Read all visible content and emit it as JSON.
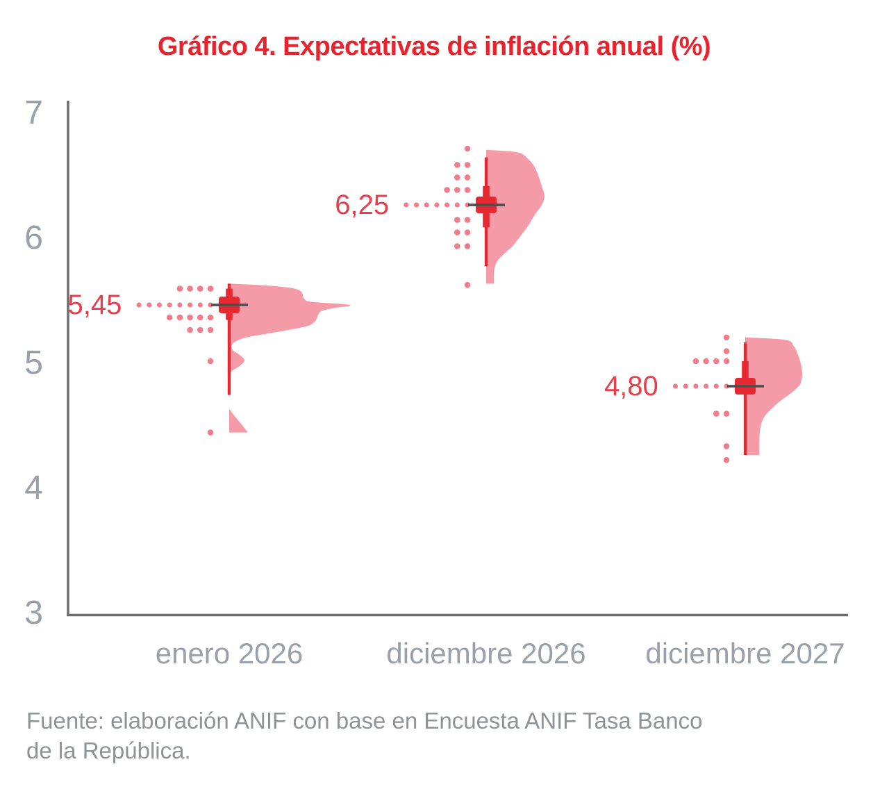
{
  "title": "Gráfico 4. Expectativas de inflación anual (%)",
  "source_lines": [
    "Fuente: elaboración ANIF con base en Encuesta ANIF Tasa Banco",
    "de la República."
  ],
  "colors": {
    "title_red": "#e8232e",
    "label_red": "#e63e4b",
    "violin_fill": "#f59aa7",
    "dot_pink": "#f07d8c",
    "interval_red": "#e62832",
    "crosshair_dark": "#4d4d50",
    "axis_gray": "#6e6e6e",
    "tick_gray": "#9aa0a8",
    "source_gray": "#8f9296"
  },
  "chart_data": {
    "type": "raincloud-violin",
    "title": "Gráfico 4. Expectativas de inflación anual (%)",
    "xlabel": "",
    "ylabel": "",
    "ylim": [
      3,
      7
    ],
    "yticks": [
      7,
      6,
      5,
      4,
      3
    ],
    "grid": false,
    "legend": false,
    "categories": [
      "enero 2026",
      "diciembre 2026",
      "diciembre 2027"
    ],
    "series": [
      {
        "category": "enero 2026",
        "median": 5.45,
        "median_label": "5,45",
        "interval_low": 4.73,
        "interval_high": 5.62,
        "box_low": 5.33,
        "box_high": 5.58,
        "leader_dots": 8,
        "jitter_rows": [
          {
            "v": 5.58,
            "n": 4
          },
          {
            "v": 5.35,
            "n": 5
          },
          {
            "v": 5.25,
            "n": 3
          },
          {
            "v": 5.0,
            "n": 1
          },
          {
            "v": 4.43,
            "n": 1
          }
        ],
        "violin_profiles": [
          {
            "flat_bottom": false,
            "points": [
              [
                5.62,
                0
              ],
              [
                5.605,
                55
              ],
              [
                5.585,
                90
              ],
              [
                5.56,
                103
              ],
              [
                5.53,
                106
              ],
              [
                5.5,
                108
              ],
              [
                5.475,
                118
              ],
              [
                5.455,
                168
              ],
              [
                5.44,
                172
              ],
              [
                5.425,
                150
              ],
              [
                5.4,
                133
              ],
              [
                5.37,
                128
              ],
              [
                5.34,
                126
              ],
              [
                5.31,
                122
              ],
              [
                5.28,
                112
              ],
              [
                5.25,
                85
              ],
              [
                5.22,
                55
              ],
              [
                5.19,
                25
              ],
              [
                5.16,
                10
              ],
              [
                5.13,
                4
              ],
              [
                5.09,
                5
              ],
              [
                5.05,
                15
              ],
              [
                5.01,
                22
              ],
              [
                4.97,
                17
              ],
              [
                4.93,
                6
              ],
              [
                4.905,
                0
              ]
            ]
          },
          {
            "flat_bottom": true,
            "points": [
              [
                4.61,
                1
              ],
              [
                4.56,
                8
              ],
              [
                4.5,
                17
              ],
              [
                4.43,
                27
              ]
            ]
          }
        ]
      },
      {
        "category": "diciembre 2026",
        "median": 6.25,
        "median_label": "6,25",
        "interval_low": 5.76,
        "interval_high": 6.63,
        "box_low": 6.07,
        "box_high": 6.4,
        "leader_dots": 7,
        "jitter_rows": [
          {
            "v": 6.7,
            "n": 1
          },
          {
            "v": 6.57,
            "n": 2
          },
          {
            "v": 6.47,
            "n": 2
          },
          {
            "v": 6.37,
            "n": 3
          },
          {
            "v": 6.13,
            "n": 2
          },
          {
            "v": 6.03,
            "n": 2
          },
          {
            "v": 5.92,
            "n": 2
          },
          {
            "v": 5.61,
            "n": 1
          }
        ],
        "violin_profiles": [
          {
            "flat_bottom": true,
            "points": [
              [
                6.69,
                0
              ],
              [
                6.67,
                45
              ],
              [
                6.62,
                60
              ],
              [
                6.55,
                70
              ],
              [
                6.47,
                76
              ],
              [
                6.4,
                80
              ],
              [
                6.32,
                84
              ],
              [
                6.25,
                80
              ],
              [
                6.17,
                70
              ],
              [
                6.08,
                60
              ],
              [
                5.99,
                48
              ],
              [
                5.92,
                38
              ],
              [
                5.86,
                26
              ],
              [
                5.8,
                16
              ],
              [
                5.74,
                12
              ],
              [
                5.68,
                11
              ],
              [
                5.62,
                11
              ]
            ]
          }
        ]
      },
      {
        "category": "diciembre 2027",
        "median": 4.8,
        "median_label": "4,80",
        "interval_low": 4.25,
        "interval_high": 5.15,
        "box_low": 4.74,
        "box_high": 5.0,
        "leader_dots": 6,
        "jitter_rows": [
          {
            "v": 5.19,
            "n": 1
          },
          {
            "v": 5.08,
            "n": 1
          },
          {
            "v": 5.0,
            "n": 4
          },
          {
            "v": 4.58,
            "n": 2
          },
          {
            "v": 4.32,
            "n": 1
          },
          {
            "v": 4.21,
            "n": 1
          }
        ],
        "violin_profiles": [
          {
            "flat_bottom": true,
            "points": [
              [
                5.19,
                0
              ],
              [
                5.17,
                58
              ],
              [
                5.12,
                70
              ],
              [
                5.05,
                76
              ],
              [
                4.98,
                80
              ],
              [
                4.9,
                82
              ],
              [
                4.83,
                80
              ],
              [
                4.8,
                77
              ],
              [
                4.74,
                65
              ],
              [
                4.68,
                50
              ],
              [
                4.62,
                38
              ],
              [
                4.56,
                28
              ],
              [
                4.5,
                23
              ],
              [
                4.43,
                21
              ],
              [
                4.35,
                20
              ],
              [
                4.25,
                20
              ]
            ]
          }
        ]
      }
    ]
  }
}
